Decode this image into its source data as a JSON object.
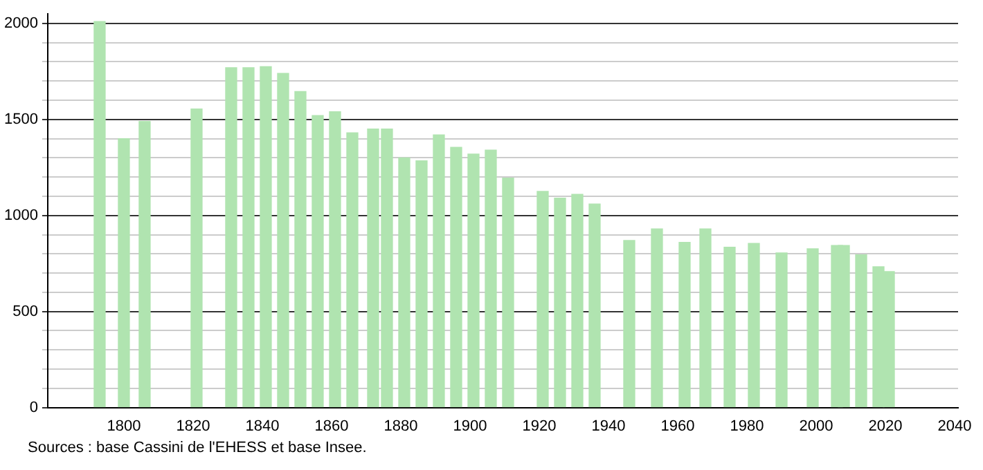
{
  "chart_data": {
    "type": "bar",
    "x": [
      1793,
      1800,
      1806,
      1821,
      1831,
      1836,
      1841,
      1846,
      1851,
      1856,
      1861,
      1866,
      1872,
      1876,
      1881,
      1886,
      1891,
      1896,
      1901,
      1906,
      1911,
      1921,
      1926,
      1931,
      1936,
      1946,
      1954,
      1962,
      1968,
      1975,
      1982,
      1990,
      1999,
      2006,
      2008,
      2013,
      2018,
      2021
    ],
    "values": [
      2010,
      1400,
      1490,
      1555,
      1770,
      1770,
      1775,
      1740,
      1645,
      1520,
      1540,
      1430,
      1450,
      1450,
      1300,
      1285,
      1420,
      1355,
      1320,
      1340,
      1195,
      1125,
      1090,
      1110,
      1060,
      870,
      930,
      860,
      930,
      835,
      855,
      805,
      827,
      844,
      844,
      795,
      733,
      708
    ],
    "color": "#b0e4b0",
    "xlim": [
      1778,
      2041
    ],
    "xticks": [
      1800,
      1820,
      1840,
      1860,
      1880,
      1900,
      1920,
      1940,
      1960,
      1980,
      2000,
      2020,
      2040
    ],
    "ylim": [
      0,
      2050
    ],
    "yticks": [
      0,
      {
        "value": 100,
        "label": null
      },
      {
        "value": 200,
        "label": null
      },
      {
        "value": 300,
        "label": null
      },
      {
        "value": 400,
        "label": null
      },
      500,
      {
        "value": 600,
        "label": null
      },
      {
        "value": 700,
        "label": null
      },
      {
        "value": 800,
        "label": null
      },
      {
        "value": 900,
        "label": null
      },
      1000,
      {
        "value": 1100,
        "label": null
      },
      {
        "value": 1200,
        "label": null
      },
      {
        "value": 1300,
        "label": null
      },
      {
        "value": 1400,
        "label": null
      },
      1500,
      {
        "value": 1600,
        "label": null
      },
      {
        "value": 1700,
        "label": null
      },
      {
        "value": 1800,
        "label": null
      },
      {
        "value": 1900,
        "label": null
      },
      2000
    ],
    "grid": "y",
    "legend": false,
    "annotations": [
      "Sources : base Cassini de l'EHESS et base Insee."
    ]
  }
}
